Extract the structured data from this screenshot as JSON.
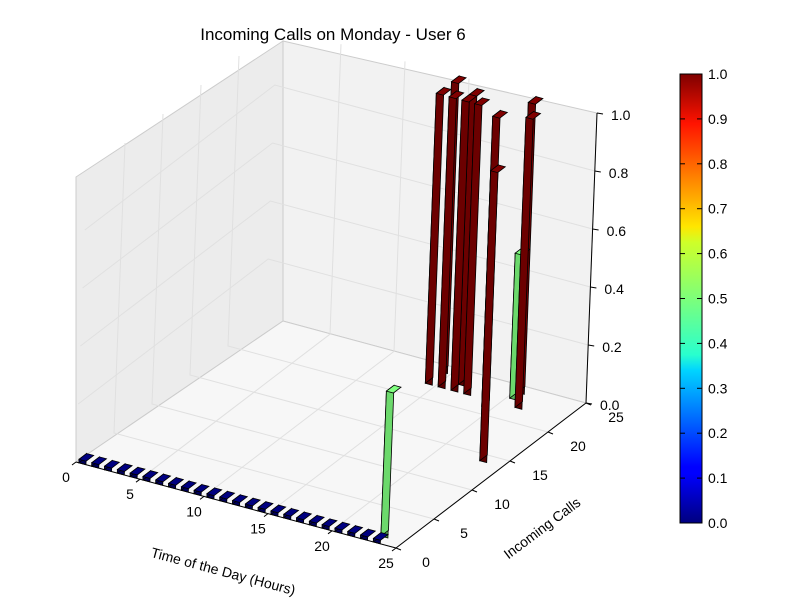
{
  "chart_data": {
    "type": "bar3d",
    "title": "Incoming Calls on Monday - User 6",
    "xlabel": "Time of the Day (Hours)",
    "ylabel": "Incoming Calls",
    "zlabel": "",
    "xlim": [
      0,
      25
    ],
    "ylim": [
      0,
      25
    ],
    "zlim": [
      0,
      1
    ],
    "x_ticks": [
      "0",
      "5",
      "10",
      "15",
      "20",
      "25"
    ],
    "y_ticks": [
      "0",
      "5",
      "10",
      "15",
      "20",
      "25"
    ],
    "z_ticks": [
      "0.0",
      "0.2",
      "0.4",
      "0.6",
      "0.8",
      "1.0"
    ],
    "colormap": "jet",
    "colorbar_ticks": [
      "0.0",
      "0.1",
      "0.2",
      "0.3",
      "0.4",
      "0.5",
      "0.6",
      "0.7",
      "0.8",
      "0.9",
      "1.0"
    ],
    "colorbar_range": [
      0,
      1
    ],
    "grid": true,
    "bars": [
      {
        "x": 0,
        "y": 0,
        "z": 0.0
      },
      {
        "x": 1,
        "y": 0,
        "z": 0.0
      },
      {
        "x": 2,
        "y": 0,
        "z": 0.0
      },
      {
        "x": 3,
        "y": 0,
        "z": 0.0
      },
      {
        "x": 4,
        "y": 0,
        "z": 0.0
      },
      {
        "x": 5,
        "y": 0,
        "z": 0.0
      },
      {
        "x": 6,
        "y": 0,
        "z": 0.0
      },
      {
        "x": 7,
        "y": 0,
        "z": 0.0
      },
      {
        "x": 8,
        "y": 0,
        "z": 0.0
      },
      {
        "x": 9,
        "y": 0,
        "z": 0.0
      },
      {
        "x": 10,
        "y": 0,
        "z": 0.0
      },
      {
        "x": 11,
        "y": 0,
        "z": 0.0
      },
      {
        "x": 12,
        "y": 0,
        "z": 0.0
      },
      {
        "x": 13,
        "y": 0,
        "z": 0.0
      },
      {
        "x": 14,
        "y": 0,
        "z": 0.0
      },
      {
        "x": 15,
        "y": 0,
        "z": 0.0
      },
      {
        "x": 16,
        "y": 0,
        "z": 0.0
      },
      {
        "x": 17,
        "y": 0,
        "z": 0.0
      },
      {
        "x": 18,
        "y": 0,
        "z": 0.0
      },
      {
        "x": 19,
        "y": 0,
        "z": 0.0
      },
      {
        "x": 20,
        "y": 0,
        "z": 0.0
      },
      {
        "x": 21,
        "y": 0,
        "z": 0.0
      },
      {
        "x": 22,
        "y": 0,
        "z": 0.0
      },
      {
        "x": 23,
        "y": 0,
        "z": 0.0
      },
      {
        "x": 23,
        "y": 1,
        "z": 0.5
      },
      {
        "x": 14,
        "y": 22,
        "z": 1.0
      },
      {
        "x": 14,
        "y": 24,
        "z": 1.0
      },
      {
        "x": 15,
        "y": 22,
        "z": 1.0
      },
      {
        "x": 16,
        "y": 22,
        "z": 1.0
      },
      {
        "x": 16,
        "y": 23,
        "z": 1.0
      },
      {
        "x": 17,
        "y": 22,
        "z": 1.0
      },
      {
        "x": 19,
        "y": 21,
        "z": 1.0
      },
      {
        "x": 20,
        "y": 23,
        "z": 0.5
      },
      {
        "x": 20,
        "y": 24,
        "z": 1.0
      },
      {
        "x": 21,
        "y": 22,
        "z": 1.0
      },
      {
        "x": 23,
        "y": 14,
        "z": 1.0
      }
    ]
  }
}
